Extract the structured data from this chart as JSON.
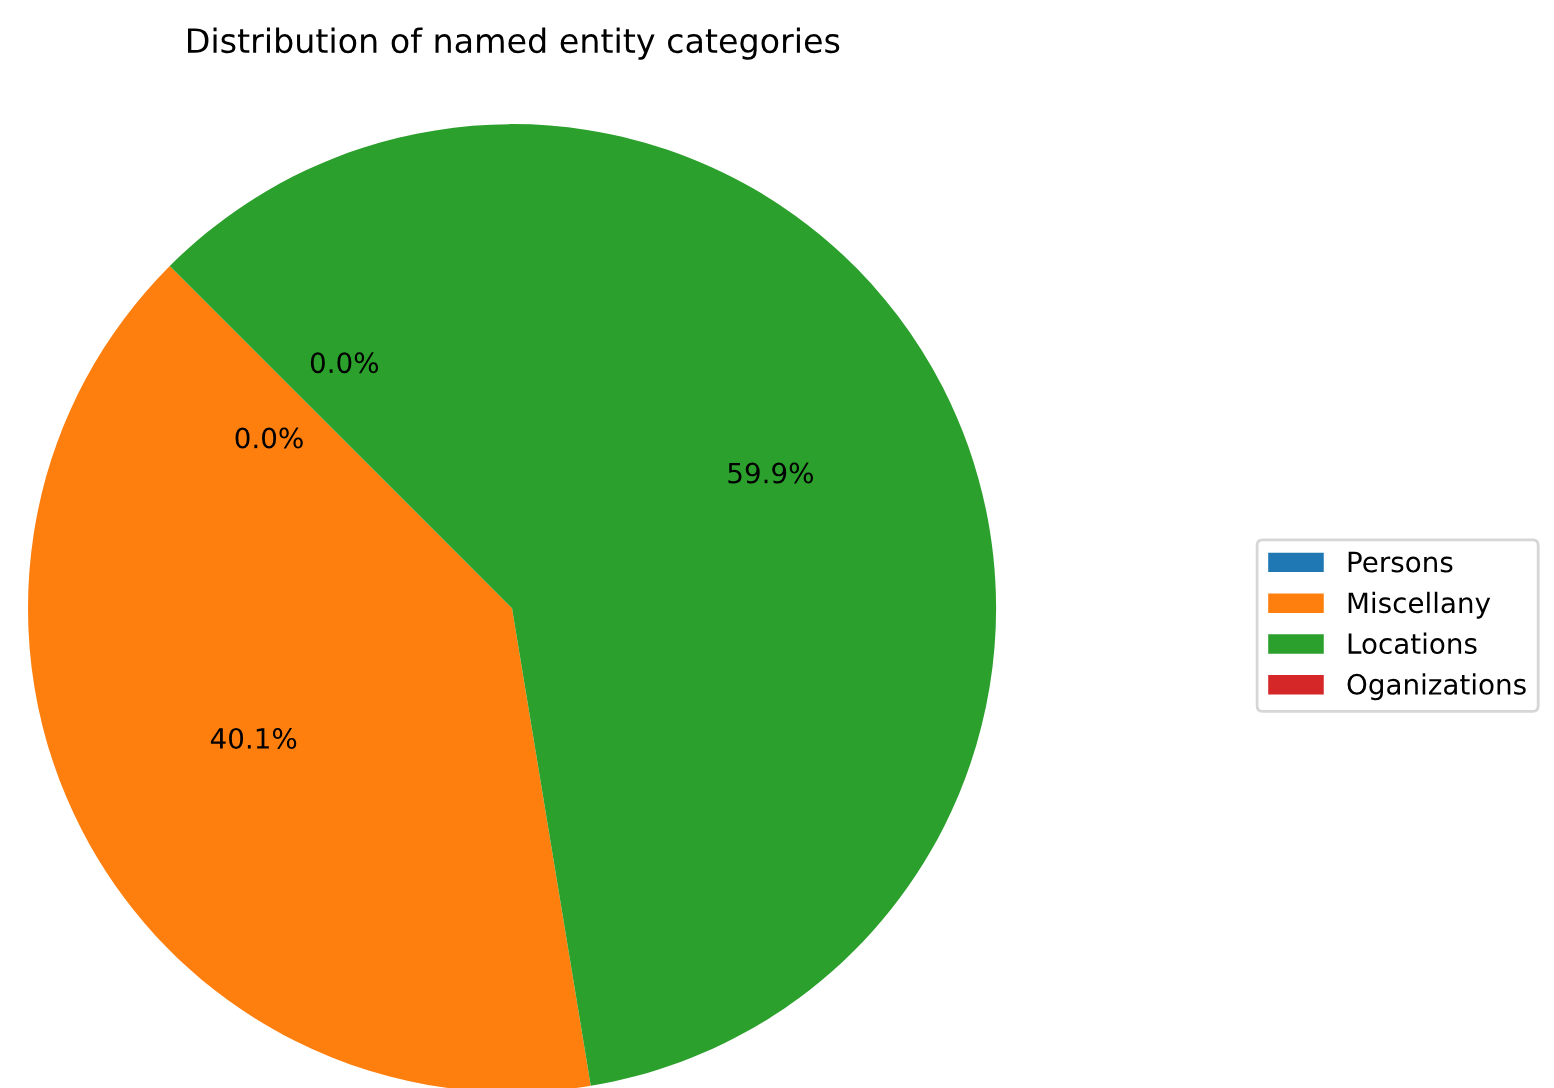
{
  "chart_data": {
    "type": "pie",
    "title": "Distribution of named entity categories",
    "categories": [
      "Persons",
      "Miscellany",
      "Locations",
      "Oganizations"
    ],
    "values": [
      0.0,
      40.1,
      59.9,
      0.0
    ],
    "value_labels": [
      "0.0%",
      "40.1%",
      "59.9%",
      "0.0%"
    ],
    "colors": [
      "#1f77b4",
      "#ff7f0e",
      "#2ca02c",
      "#d62728"
    ],
    "legend": "right"
  }
}
